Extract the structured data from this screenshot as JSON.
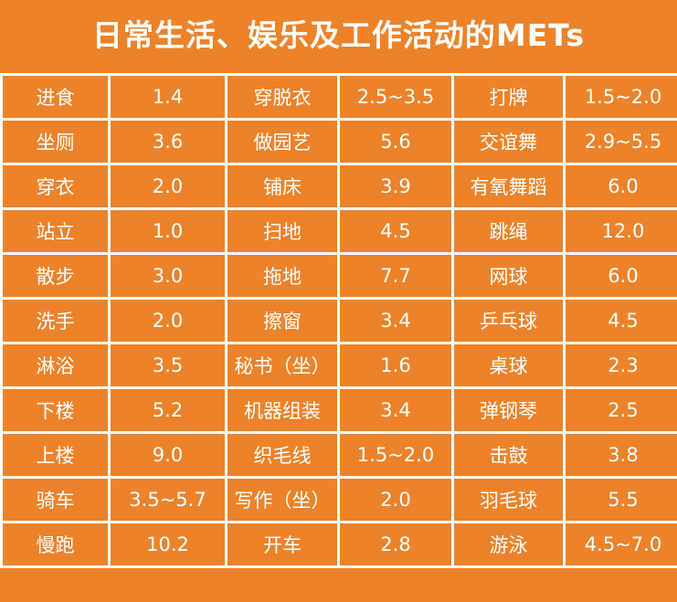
{
  "title": "日常生活、娱乐及工作活动的METs",
  "rows": [
    [
      "进食",
      "1.4",
      "穿脱衣",
      "2.5~3.5",
      "打牌",
      "1.5~2.0"
    ],
    [
      "坐厕",
      "3.6",
      "做园艺",
      "5.6",
      "交谊舞",
      "2.9~5.5"
    ],
    [
      "穿衣",
      "2.0",
      "铺床",
      "3.9",
      "有氧舞蹈",
      "6.0"
    ],
    [
      "站立",
      "1.0",
      "扫地",
      "4.5",
      "跳绳",
      "12.0"
    ],
    [
      "散步",
      "3.0",
      "拖地",
      "7.7",
      "网球",
      "6.0"
    ],
    [
      "洗手",
      "2.0",
      "擦窗",
      "3.4",
      "乒乓球",
      "4.5"
    ],
    [
      "淋浴",
      "3.5",
      "秘书（坐）",
      "1.6",
      "桌球",
      "2.3"
    ],
    [
      "下楼",
      "5.2",
      "机器组装",
      "3.4",
      "弹钢琴",
      "2.5"
    ],
    [
      "上楼",
      "9.0",
      "织毛线",
      "1.5~2.0",
      "击鼓",
      "3.8"
    ],
    [
      "骑车",
      "3.5~5.7",
      "写作（坐）",
      "2.0",
      "羽毛球",
      "5.5"
    ],
    [
      "慢跑",
      "10.2",
      "开车",
      "2.8",
      "游泳",
      "4.5~7.0"
    ]
  ]
}
